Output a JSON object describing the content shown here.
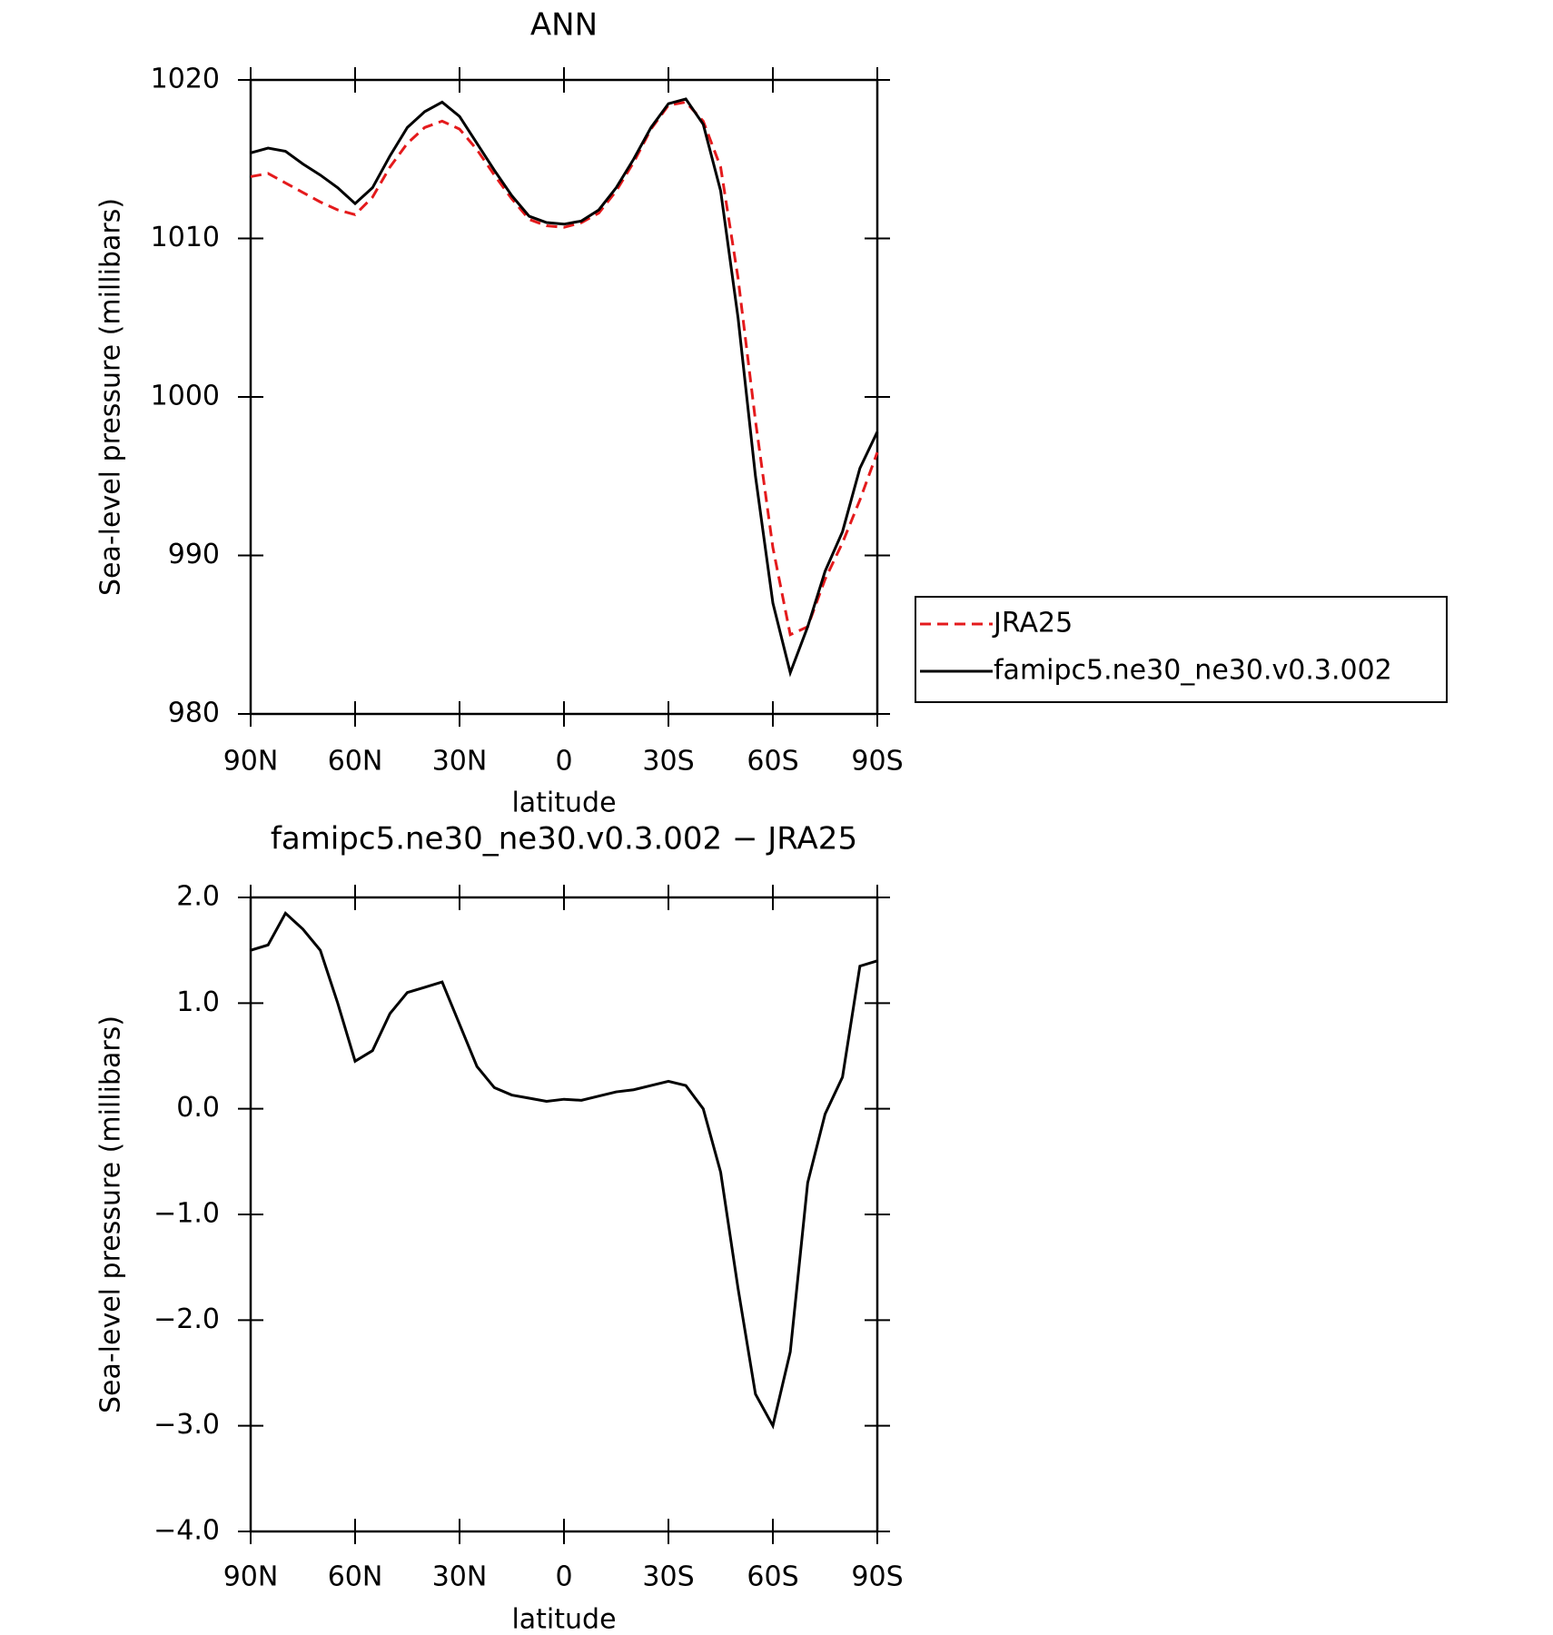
{
  "chart_data": [
    {
      "type": "line",
      "title": "ANN",
      "xlabel": "latitude",
      "ylabel": "Sea-level pressure (millibars)",
      "x": [
        90,
        85,
        80,
        75,
        70,
        65,
        60,
        55,
        50,
        45,
        40,
        35,
        30,
        25,
        20,
        15,
        10,
        5,
        0,
        -5,
        -10,
        -15,
        -20,
        -25,
        -30,
        -35,
        -40,
        -45,
        -50,
        -55,
        -60,
        -65,
        -70,
        -75,
        -80,
        -85,
        -90
      ],
      "series": [
        {
          "name": "JRA25",
          "color": "#e41a1c",
          "dash": true,
          "values": [
            1013.9,
            1014.1,
            1013.5,
            1012.9,
            1012.3,
            1011.8,
            1011.5,
            1012.6,
            1014.5,
            1016.0,
            1017.0,
            1017.4,
            1016.9,
            1015.6,
            1014.0,
            1012.5,
            1011.2,
            1010.8,
            1010.7,
            1011.0,
            1011.6,
            1013.0,
            1014.8,
            1016.9,
            1018.4,
            1018.6,
            1017.4,
            1014.5,
            1007.5,
            998.5,
            990.5,
            985.0,
            985.5,
            988.5,
            990.8,
            993.5,
            996.5
          ]
        },
        {
          "name": "famipc5.ne30_ne30.v0.3.002",
          "color": "#000000",
          "dash": false,
          "values": [
            1015.4,
            1015.7,
            1015.5,
            1014.7,
            1014.0,
            1013.2,
            1012.2,
            1013.2,
            1015.2,
            1017.0,
            1018.0,
            1018.6,
            1017.7,
            1016.0,
            1014.3,
            1012.7,
            1011.4,
            1011.0,
            1010.9,
            1011.1,
            1011.8,
            1013.2,
            1015.0,
            1017.0,
            1018.5,
            1018.8,
            1017.2,
            1013.0,
            1005.0,
            995.0,
            987.0,
            982.6,
            985.5,
            989.0,
            991.5,
            995.5,
            997.8
          ]
        }
      ],
      "xlim": [
        90,
        -90
      ],
      "xticks": [
        {
          "value": 90,
          "label": "90N"
        },
        {
          "value": 60,
          "label": "60N"
        },
        {
          "value": 30,
          "label": "30N"
        },
        0,
        {
          "value": -30,
          "label": "30S"
        },
        {
          "value": -60,
          "label": "60S"
        },
        {
          "value": -90,
          "label": "90S"
        }
      ],
      "ylim": [
        980,
        1020
      ],
      "yticks": [
        980,
        990,
        1000,
        1010,
        1020
      ],
      "legend": "right"
    },
    {
      "type": "line",
      "title": "famipc5.ne30_ne30.v0.3.002 − JRA25",
      "xlabel": "latitude",
      "ylabel": "Sea-level pressure (millibars)",
      "x": [
        90,
        85,
        80,
        75,
        70,
        65,
        60,
        55,
        50,
        45,
        40,
        35,
        30,
        25,
        20,
        15,
        10,
        5,
        0,
        -5,
        -10,
        -15,
        -20,
        -25,
        -30,
        -35,
        -40,
        -45,
        -50,
        -55,
        -60,
        -65,
        -70,
        -75,
        -80,
        -85,
        -90
      ],
      "series": [
        {
          "color": "#000000",
          "dash": false,
          "values": [
            1.5,
            1.55,
            1.85,
            1.7,
            1.5,
            1.0,
            0.45,
            0.55,
            0.9,
            1.1,
            1.15,
            1.2,
            0.8,
            0.4,
            0.2,
            0.13,
            0.1,
            0.07,
            0.09,
            0.08,
            0.12,
            0.16,
            0.18,
            0.22,
            0.26,
            0.22,
            0.0,
            -0.6,
            -1.7,
            -2.7,
            -3.0,
            -2.3,
            -0.7,
            -0.05,
            0.3,
            1.35,
            1.4
          ]
        }
      ],
      "xlim": [
        90,
        -90
      ],
      "xticks": [
        {
          "value": 90,
          "label": "90N"
        },
        {
          "value": 60,
          "label": "60N"
        },
        {
          "value": 30,
          "label": "30N"
        },
        0,
        {
          "value": -30,
          "label": "30S"
        },
        {
          "value": -60,
          "label": "60S"
        },
        {
          "value": -90,
          "label": "90S"
        }
      ],
      "ylim": [
        -4,
        2
      ],
      "yticks": [
        {
          "value": -4,
          "label": "−4.0"
        },
        {
          "value": -3,
          "label": "−3.0"
        },
        {
          "value": -2,
          "label": "−2.0"
        },
        {
          "value": -1,
          "label": "−1.0"
        },
        {
          "value": 0,
          "label": "0.0"
        },
        {
          "value": 1,
          "label": "1.0"
        },
        {
          "value": 2,
          "label": "2.0"
        }
      ]
    }
  ]
}
